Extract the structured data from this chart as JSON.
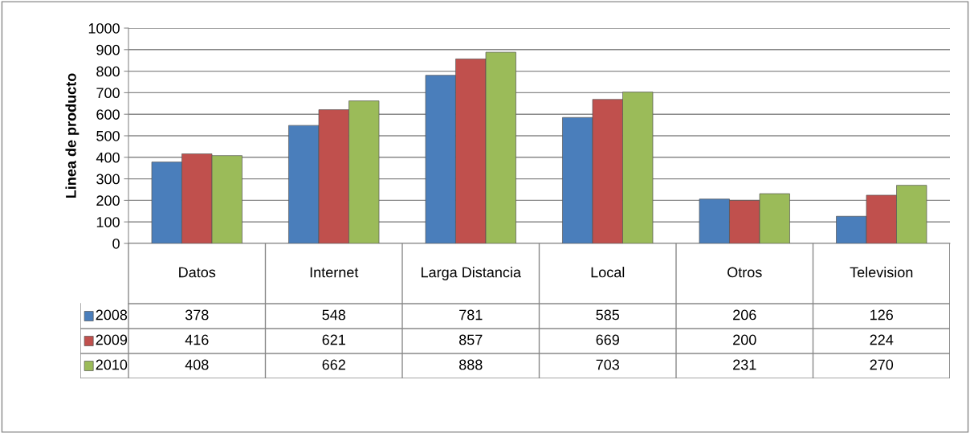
{
  "chart_data": {
    "type": "bar",
    "ylabel": "Linea de producto",
    "categories": [
      "Datos",
      "Internet",
      "Larga Distancia",
      "Local",
      "Otros",
      "Television"
    ],
    "series": [
      {
        "name": "2008",
        "color": "#4a7ebb",
        "values": [
          378,
          548,
          781,
          585,
          206,
          126
        ]
      },
      {
        "name": "2009",
        "color": "#c0504d",
        "values": [
          416,
          621,
          857,
          669,
          200,
          224
        ]
      },
      {
        "name": "2010",
        "color": "#9bbb59",
        "values": [
          408,
          662,
          888,
          703,
          231,
          270
        ]
      }
    ],
    "ylim": [
      0,
      1000
    ],
    "yticks": [
      0,
      100,
      200,
      300,
      400,
      500,
      600,
      700,
      800,
      900,
      1000
    ],
    "grid": "y",
    "data_labels": true,
    "legend": "bottom"
  }
}
